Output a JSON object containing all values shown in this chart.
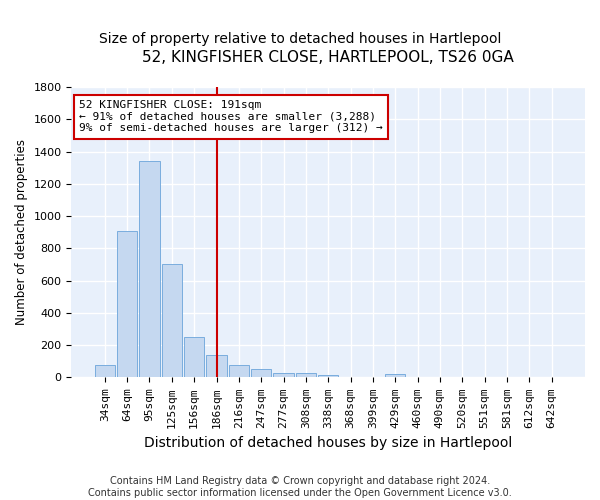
{
  "title": "52, KINGFISHER CLOSE, HARTLEPOOL, TS26 0GA",
  "subtitle": "Size of property relative to detached houses in Hartlepool",
  "xlabel": "Distribution of detached houses by size in Hartlepool",
  "ylabel": "Number of detached properties",
  "categories": [
    "34sqm",
    "64sqm",
    "95sqm",
    "125sqm",
    "156sqm",
    "186sqm",
    "216sqm",
    "247sqm",
    "277sqm",
    "308sqm",
    "338sqm",
    "368sqm",
    "399sqm",
    "429sqm",
    "460sqm",
    "490sqm",
    "520sqm",
    "551sqm",
    "581sqm",
    "612sqm",
    "642sqm"
  ],
  "values": [
    80,
    910,
    1340,
    700,
    250,
    140,
    80,
    50,
    30,
    25,
    15,
    0,
    0,
    20,
    0,
    0,
    0,
    0,
    0,
    0,
    0
  ],
  "bar_color": "#c5d8f0",
  "bar_edge_color": "#7aadde",
  "vline_x": 5,
  "vline_color": "#cc0000",
  "annotation_line1": "52 KINGFISHER CLOSE: 191sqm",
  "annotation_line2": "← 91% of detached houses are smaller (3,288)",
  "annotation_line3": "9% of semi-detached houses are larger (312) →",
  "annotation_box_color": "white",
  "annotation_box_edge": "#cc0000",
  "ylim": [
    0,
    1800
  ],
  "yticks": [
    0,
    200,
    400,
    600,
    800,
    1000,
    1200,
    1400,
    1600,
    1800
  ],
  "footnote": "Contains HM Land Registry data © Crown copyright and database right 2024.\nContains public sector information licensed under the Open Government Licence v3.0.",
  "bg_color": "#dce8f8",
  "plot_area_color": "#e8f0fb",
  "title_fontsize": 11,
  "subtitle_fontsize": 10,
  "xlabel_fontsize": 10,
  "ylabel_fontsize": 8.5,
  "tick_fontsize": 8,
  "footnote_fontsize": 7
}
